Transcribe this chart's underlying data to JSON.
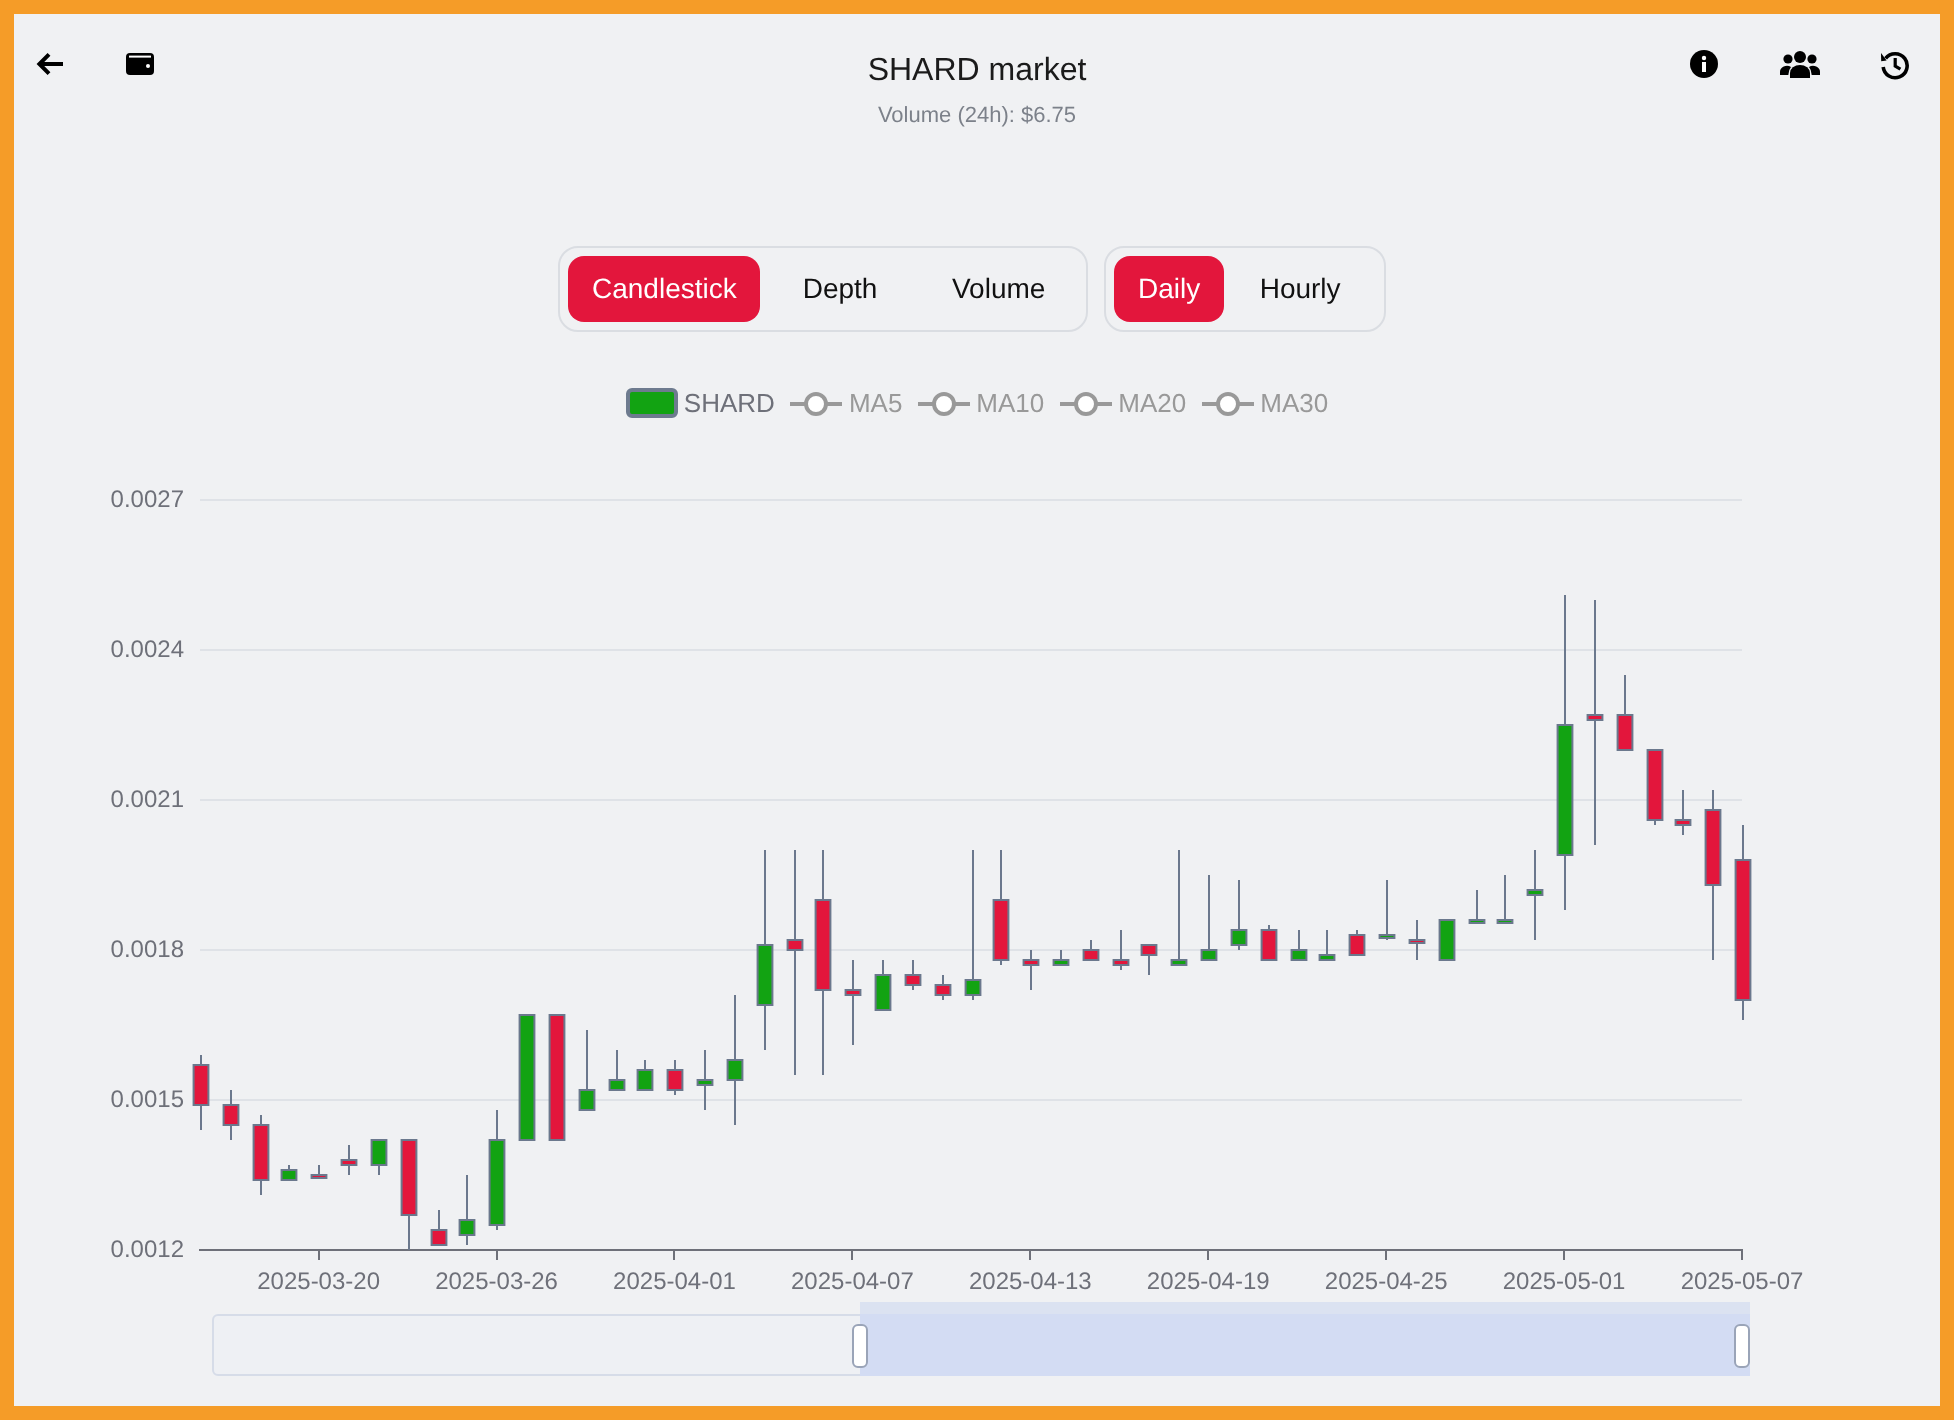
{
  "chart_data": {
    "type": "candlestick",
    "title": "SHARD market",
    "subtitle": "Volume (24h): $6.75",
    "annotations": [
      "Candlestick",
      "Depth",
      "Volume",
      "Daily",
      "Hourly"
    ],
    "x": [
      "2025-03-16",
      "2025-03-17",
      "2025-03-18",
      "2025-03-19",
      "2025-03-20",
      "2025-03-21",
      "2025-03-22",
      "2025-03-23",
      "2025-03-24",
      "2025-03-25",
      "2025-03-26",
      "2025-03-27",
      "2025-03-28",
      "2025-03-29",
      "2025-03-30",
      "2025-03-31",
      "2025-04-01",
      "2025-04-02",
      "2025-04-03",
      "2025-04-04",
      "2025-04-05",
      "2025-04-06",
      "2025-04-07",
      "2025-04-08",
      "2025-04-09",
      "2025-04-10",
      "2025-04-11",
      "2025-04-12",
      "2025-04-13",
      "2025-04-14",
      "2025-04-15",
      "2025-04-16",
      "2025-04-17",
      "2025-04-18",
      "2025-04-19",
      "2025-04-20",
      "2025-04-21",
      "2025-04-22",
      "2025-04-23",
      "2025-04-24",
      "2025-04-25",
      "2025-04-26",
      "2025-04-27",
      "2025-04-28",
      "2025-04-29",
      "2025-04-30",
      "2025-05-01",
      "2025-05-02",
      "2025-05-03",
      "2025-05-04",
      "2025-05-05",
      "2025-05-06",
      "2025-05-07"
    ],
    "series": [
      {
        "name": "SHARD",
        "ohlc": [
          [
            0.00157,
            0.00159,
            0.00144,
            0.00149
          ],
          [
            0.00149,
            0.00152,
            0.00142,
            0.00145
          ],
          [
            0.00145,
            0.00147,
            0.00131,
            0.00134
          ],
          [
            0.00134,
            0.00137,
            0.00134,
            0.00136
          ],
          [
            0.00135,
            0.00137,
            0.00135,
            0.00135
          ],
          [
            0.00138,
            0.00141,
            0.00135,
            0.00137
          ],
          [
            0.00137,
            0.00142,
            0.00135,
            0.00142
          ],
          [
            0.00142,
            0.00142,
            0.0012,
            0.00127
          ],
          [
            0.00124,
            0.00128,
            0.00121,
            0.00121
          ],
          [
            0.00123,
            0.00135,
            0.00121,
            0.00126
          ],
          [
            0.00125,
            0.00148,
            0.00124,
            0.00142
          ],
          [
            0.00142,
            0.00167,
            0.00142,
            0.00167
          ],
          [
            0.00167,
            0.00167,
            0.00142,
            0.00142
          ],
          [
            0.00148,
            0.00164,
            0.00148,
            0.00152
          ],
          [
            0.00152,
            0.0016,
            0.00152,
            0.00154
          ],
          [
            0.00152,
            0.00158,
            0.00152,
            0.00156
          ],
          [
            0.00156,
            0.00158,
            0.00151,
            0.00152
          ],
          [
            0.00153,
            0.0016,
            0.00148,
            0.00154
          ],
          [
            0.00154,
            0.00171,
            0.00145,
            0.00158
          ],
          [
            0.00169,
            0.002,
            0.0016,
            0.00181
          ],
          [
            0.00182,
            0.002,
            0.00155,
            0.0018
          ],
          [
            0.0019,
            0.002,
            0.00155,
            0.00172
          ],
          [
            0.00172,
            0.00178,
            0.00161,
            0.00171
          ],
          [
            0.00168,
            0.00178,
            0.00168,
            0.00175
          ],
          [
            0.00175,
            0.00178,
            0.00172,
            0.00173
          ],
          [
            0.00173,
            0.00175,
            0.0017,
            0.00171
          ],
          [
            0.00171,
            0.002,
            0.0017,
            0.00174
          ],
          [
            0.0019,
            0.002,
            0.00177,
            0.00178
          ],
          [
            0.00178,
            0.0018,
            0.00172,
            0.00177
          ],
          [
            0.00177,
            0.0018,
            0.00177,
            0.00178
          ],
          [
            0.0018,
            0.00182,
            0.00178,
            0.00178
          ],
          [
            0.00178,
            0.00184,
            0.00176,
            0.00177
          ],
          [
            0.00181,
            0.00181,
            0.00175,
            0.00179
          ],
          [
            0.00177,
            0.002,
            0.00177,
            0.00178
          ],
          [
            0.00178,
            0.00195,
            0.00178,
            0.0018
          ],
          [
            0.00181,
            0.00194,
            0.0018,
            0.00184
          ],
          [
            0.00184,
            0.00185,
            0.00178,
            0.00178
          ],
          [
            0.00178,
            0.00184,
            0.00178,
            0.0018
          ],
          [
            0.00178,
            0.00184,
            0.00178,
            0.00179
          ],
          [
            0.00183,
            0.00184,
            0.00179,
            0.00179
          ],
          [
            0.00183,
            0.00194,
            0.00182,
            0.00183
          ],
          [
            0.00182,
            0.00186,
            0.00178,
            0.00182
          ],
          [
            0.00178,
            0.00186,
            0.00178,
            0.00186
          ],
          [
            0.00186,
            0.00192,
            0.00186,
            0.00186
          ],
          [
            0.00186,
            0.00195,
            0.00186,
            0.00186
          ],
          [
            0.00191,
            0.002,
            0.00182,
            0.00192
          ],
          [
            0.00199,
            0.00251,
            0.00188,
            0.00225
          ],
          [
            0.00227,
            0.0025,
            0.00201,
            0.00226
          ],
          [
            0.00227,
            0.00235,
            0.0022,
            0.0022
          ],
          [
            0.0022,
            0.0022,
            0.00205,
            0.00206
          ],
          [
            0.00206,
            0.00212,
            0.00203,
            0.00205
          ],
          [
            0.00208,
            0.00212,
            0.00178,
            0.00193
          ],
          [
            0.00198,
            0.00205,
            0.00166,
            0.0017
          ]
        ],
        "colors": [
          "#e3163c",
          "#e3163c",
          "#e3163c",
          "#12a312",
          "#e3163c",
          "#e3163c",
          "#12a312",
          "#e3163c",
          "#e3163c",
          "#12a312",
          "#12a312",
          "#12a312",
          "#e3163c",
          "#12a312",
          "#12a312",
          "#12a312",
          "#e3163c",
          "#12a312",
          "#12a312",
          "#12a312",
          "#e3163c",
          "#e3163c",
          "#e3163c",
          "#12a312",
          "#e3163c",
          "#e3163c",
          "#12a312",
          "#e3163c",
          "#e3163c",
          "#12a312",
          "#e3163c",
          "#e3163c",
          "#e3163c",
          "#12a312",
          "#12a312",
          "#12a312",
          "#e3163c",
          "#12a312",
          "#12a312",
          "#e3163c",
          "#12a312",
          "#e3163c",
          "#12a312",
          "#12a312",
          "#12a312",
          "#12a312",
          "#12a312",
          "#e3163c",
          "#e3163c",
          "#e3163c",
          "#e3163c",
          "#e3163c",
          "#e3163c"
        ]
      },
      {
        "name": "MA5",
        "type": "line",
        "color": "#999999",
        "values": [
          null,
          null,
          null,
          null,
          null,
          null,
          null,
          null,
          null,
          null,
          null,
          null,
          null,
          null,
          null,
          null,
          null,
          null,
          null,
          null,
          null,
          null,
          null,
          null,
          null,
          null,
          null,
          null,
          null,
          null,
          null,
          null,
          null,
          null,
          null,
          null,
          null,
          null,
          null,
          null,
          null,
          null,
          null,
          null,
          null,
          null,
          null,
          null,
          null,
          null,
          null,
          null,
          null
        ]
      },
      {
        "name": "MA10",
        "type": "line",
        "color": "#999999",
        "values": [
          null,
          null,
          null,
          null,
          null,
          null,
          null,
          null,
          null,
          null,
          null,
          null,
          null,
          null,
          null,
          null,
          null,
          null,
          null,
          null,
          null,
          null,
          null,
          null,
          null,
          null,
          null,
          null,
          null,
          null,
          null,
          null,
          null,
          null,
          null,
          null,
          null,
          null,
          null,
          null,
          null,
          null,
          null,
          null,
          null,
          null,
          null,
          null,
          null,
          null,
          null,
          null,
          null
        ]
      },
      {
        "name": "MA20",
        "type": "line",
        "color": "#999999",
        "values": [
          null,
          null,
          null,
          null,
          null,
          null,
          null,
          null,
          null,
          null,
          null,
          null,
          null,
          null,
          null,
          null,
          null,
          null,
          null,
          null,
          null,
          null,
          null,
          null,
          null,
          null,
          null,
          null,
          null,
          null,
          null,
          null,
          null,
          null,
          null,
          null,
          null,
          null,
          null,
          null,
          null,
          null,
          null,
          null,
          null,
          null,
          null,
          null,
          null,
          null,
          null,
          null,
          null
        ]
      },
      {
        "name": "MA30",
        "type": "line",
        "color": "#999999",
        "values": [
          null,
          null,
          null,
          null,
          null,
          null,
          null,
          null,
          null,
          null,
          null,
          null,
          null,
          null,
          null,
          null,
          null,
          null,
          null,
          null,
          null,
          null,
          null,
          null,
          null,
          null,
          null,
          null,
          null,
          null,
          null,
          null,
          null,
          null,
          null,
          null,
          null,
          null,
          null,
          null,
          null,
          null,
          null,
          null,
          null,
          null,
          null,
          null,
          null,
          null,
          null,
          null,
          null
        ]
      }
    ],
    "xlim": [
      "2025-03-16",
      "2025-05-07"
    ],
    "xticks": [
      "2025-03-20",
      "2025-03-26",
      "2025-04-01",
      "2025-04-07",
      "2025-04-13",
      "2025-04-19",
      "2025-04-25",
      "2025-05-01",
      "2025-05-07"
    ],
    "ylim": [
      0.0012,
      0.0027
    ],
    "yticks": [
      0.0012,
      0.0015,
      0.0018,
      0.0021,
      0.0024,
      0.0027
    ],
    "grid": "y",
    "legend": "top",
    "marker": "circle"
  }
}
